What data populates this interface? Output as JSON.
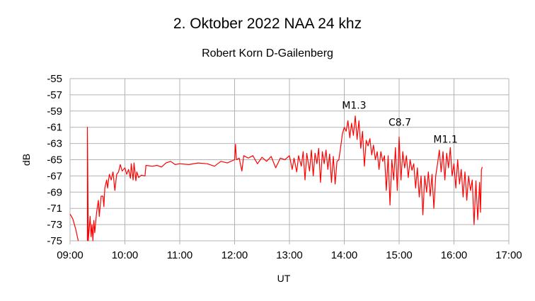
{
  "chart_data": {
    "type": "line",
    "title": "2. Oktober 2022  NAA 24 khz",
    "subtitle": "Robert Korn  D-Gailenberg",
    "xlabel": "UT",
    "ylabel": "dB",
    "xlim": [
      "09:00",
      "17:00"
    ],
    "ylim": [
      -75,
      -55
    ],
    "x_ticks": [
      "09:00",
      "10:00",
      "11:00",
      "12:00",
      "13:00",
      "14:00",
      "15:00",
      "16:00",
      "17:00"
    ],
    "y_ticks": [
      "-55",
      "-57",
      "-59",
      "-61",
      "-63",
      "-65",
      "-67",
      "-69",
      "-71",
      "-73",
      "-75"
    ],
    "grid": true,
    "line_color": "#ff0000",
    "annotations": [
      {
        "text": "M1.3",
        "x": "14:10"
      },
      {
        "text": "C8.7",
        "x": "15:00"
      },
      {
        "text": "M1.1",
        "x": "15:50"
      }
    ],
    "annotation_y": [
      -58.7,
      -60.8,
      -62.9
    ],
    "points": [
      [
        "09:00",
        -71.7
      ],
      [
        "09:03",
        -72.3
      ],
      [
        "09:06",
        -73.5
      ],
      [
        "09:08",
        -74.5
      ],
      [
        "09:09",
        -75
      ],
      null,
      [
        "09:19",
        -75
      ],
      [
        "09:19",
        -61
      ],
      [
        "09:20",
        -75
      ],
      [
        "09:22",
        -72
      ],
      [
        "09:23",
        -74.5
      ],
      [
        "09:24",
        -73
      ],
      [
        "09:25",
        -75
      ],
      [
        "09:26",
        -72.5
      ],
      [
        "09:27",
        -74
      ],
      [
        "09:29",
        -71.5
      ],
      [
        "09:31",
        -70
      ],
      [
        "09:32",
        -72
      ],
      [
        "09:34",
        -69.5
      ],
      [
        "09:36",
        -69.5
      ],
      [
        "09:37",
        -70.8
      ],
      [
        "09:38",
        -68.5
      ],
      [
        "09:40",
        -67.5
      ],
      [
        "09:41",
        -68.5
      ],
      [
        "09:43",
        -66.8
      ],
      [
        "09:45",
        -67.5
      ],
      [
        "09:47",
        -66.5
      ],
      [
        "09:49",
        -68.8
      ],
      [
        "09:51",
        -66.8
      ],
      [
        "09:53",
        -66.5
      ],
      [
        "09:55",
        -65.6
      ],
      [
        "09:57",
        -66.4
      ],
      [
        "10:00",
        -66
      ],
      [
        "10:02",
        -66.8
      ],
      [
        "10:04",
        -66.2
      ],
      [
        "10:06",
        -67.3
      ],
      [
        "10:07",
        -65.5
      ],
      [
        "10:09",
        -67.5
      ],
      [
        "10:10",
        -65.4
      ],
      [
        "10:12",
        -67.6
      ],
      [
        "10:13",
        -66.5
      ],
      [
        "10:15",
        -67.2
      ],
      [
        "10:18",
        -66.9
      ],
      [
        "10:22",
        -67
      ],
      [
        "10:23",
        -65.7
      ],
      [
        "10:30",
        -65.8
      ],
      [
        "10:35",
        -65.7
      ],
      [
        "10:40",
        -65.9
      ],
      [
        "10:45",
        -65.4
      ],
      [
        "10:50",
        -65.2
      ],
      [
        "10:55",
        -65.6
      ],
      [
        "11:00",
        -65.5
      ],
      [
        "11:10",
        -65.6
      ],
      [
        "11:20",
        -65.4
      ],
      [
        "11:30",
        -65.5
      ],
      [
        "11:38",
        -65.8
      ],
      [
        "11:45",
        -65.2
      ],
      [
        "11:52",
        -65.4
      ],
      [
        "12:00",
        -65
      ],
      [
        "12:01",
        -63.1
      ],
      [
        "12:02",
        -65
      ],
      [
        "12:05",
        -64.8
      ],
      [
        "12:08",
        -66.4
      ],
      [
        "12:10",
        -64.5
      ],
      [
        "12:15",
        -64.8
      ],
      [
        "12:20",
        -64.5
      ],
      [
        "12:25",
        -65.5
      ],
      [
        "12:30",
        -64.7
      ],
      [
        "12:35",
        -65.2
      ],
      [
        "12:40",
        -64.6
      ],
      [
        "12:45",
        -66
      ],
      [
        "12:50",
        -64.8
      ],
      [
        "12:55",
        -65
      ],
      [
        "13:00",
        -64.5
      ],
      [
        "13:03",
        -66.2
      ],
      [
        "13:05",
        -64.8
      ],
      [
        "13:08",
        -66.5
      ],
      [
        "13:10",
        -64.5
      ],
      [
        "13:13",
        -65.8
      ],
      [
        "13:15",
        -64
      ],
      [
        "13:17",
        -67.5
      ],
      [
        "13:19",
        -64.2
      ],
      [
        "13:22",
        -66.4
      ],
      [
        "13:24",
        -63.8
      ],
      [
        "13:26",
        -67
      ],
      [
        "13:28",
        -64.2
      ],
      [
        "13:30",
        -65.5
      ],
      [
        "13:32",
        -63.6
      ],
      [
        "13:34",
        -67.8
      ],
      [
        "13:36",
        -64
      ],
      [
        "13:38",
        -65.5
      ],
      [
        "13:40",
        -63.8
      ],
      [
        "13:42",
        -66.2
      ],
      [
        "13:44",
        -64.3
      ],
      [
        "13:46",
        -67.8
      ],
      [
        "13:48",
        -64.6
      ],
      [
        "13:50",
        -68
      ],
      [
        "13:52",
        -65.2
      ],
      [
        "13:54",
        -65
      ],
      [
        "13:56",
        -63.5
      ],
      [
        "13:58",
        -61.8
      ],
      [
        "14:00",
        -61
      ],
      [
        "14:02",
        -61.5
      ],
      [
        "14:04",
        -60.2
      ],
      [
        "14:06",
        -62.3
      ],
      [
        "14:08",
        -60.5
      ],
      [
        "14:10",
        -62
      ],
      [
        "14:12",
        -59.6
      ],
      [
        "14:14",
        -62.5
      ],
      [
        "14:16",
        -60.2
      ],
      [
        "14:18",
        -63.6
      ],
      [
        "14:20",
        -61.5
      ],
      [
        "14:22",
        -65.8
      ],
      [
        "14:24",
        -62.6
      ],
      [
        "14:26",
        -63.3
      ],
      [
        "14:28",
        -62.4
      ],
      [
        "14:30",
        -64.4
      ],
      [
        "14:32",
        -63.2
      ],
      [
        "14:34",
        -65
      ],
      [
        "14:36",
        -64
      ],
      [
        "14:38",
        -66.2
      ],
      [
        "14:40",
        -64
      ],
      [
        "14:42",
        -65.2
      ],
      [
        "14:44",
        -64.5
      ],
      [
        "14:46",
        -68.8
      ],
      [
        "14:48",
        -64.5
      ],
      [
        "14:50",
        -70.6
      ],
      [
        "14:52",
        -65
      ],
      [
        "14:54",
        -67.5
      ],
      [
        "14:56",
        -63.5
      ],
      [
        "14:58",
        -68.8
      ],
      [
        "15:00",
        -62.2
      ],
      [
        "15:02",
        -67.5
      ],
      [
        "15:04",
        -64
      ],
      [
        "15:06",
        -66
      ],
      [
        "15:08",
        -64.5
      ],
      [
        "15:10",
        -67.2
      ],
      [
        "15:12",
        -65
      ],
      [
        "15:14",
        -66.3
      ],
      [
        "15:16",
        -65.5
      ],
      [
        "15:18",
        -68.5
      ],
      [
        "15:20",
        -66
      ],
      [
        "15:22",
        -69.6
      ],
      [
        "15:24",
        -67
      ],
      [
        "15:26",
        -71.8
      ],
      [
        "15:28",
        -67
      ],
      [
        "15:30",
        -69
      ],
      [
        "15:32",
        -66.5
      ],
      [
        "15:34",
        -69.5
      ],
      [
        "15:36",
        -66.8
      ],
      [
        "15:38",
        -71
      ],
      [
        "15:40",
        -67
      ],
      [
        "15:42",
        -65.5
      ],
      [
        "15:44",
        -63.8
      ],
      [
        "15:46",
        -66.5
      ],
      [
        "15:48",
        -64
      ],
      [
        "15:50",
        -67.5
      ],
      [
        "15:52",
        -64.2
      ],
      [
        "15:54",
        -66
      ],
      [
        "15:56",
        -63.5
      ],
      [
        "15:58",
        -67
      ],
      [
        "16:00",
        -65.5
      ],
      [
        "16:02",
        -68.5
      ],
      [
        "16:04",
        -65
      ],
      [
        "16:06",
        -68
      ],
      [
        "16:08",
        -66.2
      ],
      [
        "16:10",
        -69.6
      ],
      [
        "16:12",
        -66.5
      ],
      [
        "16:14",
        -70
      ],
      [
        "16:16",
        -67
      ],
      [
        "16:18",
        -68.8
      ],
      [
        "16:20",
        -67.5
      ],
      [
        "16:22",
        -73
      ],
      [
        "16:24",
        -67.6
      ],
      [
        "16:26",
        -72.4
      ],
      [
        "16:28",
        -67.8
      ],
      [
        "16:29",
        -71.5
      ],
      [
        "16:30",
        -66.2
      ],
      [
        "16:31",
        -65.9
      ]
    ]
  }
}
